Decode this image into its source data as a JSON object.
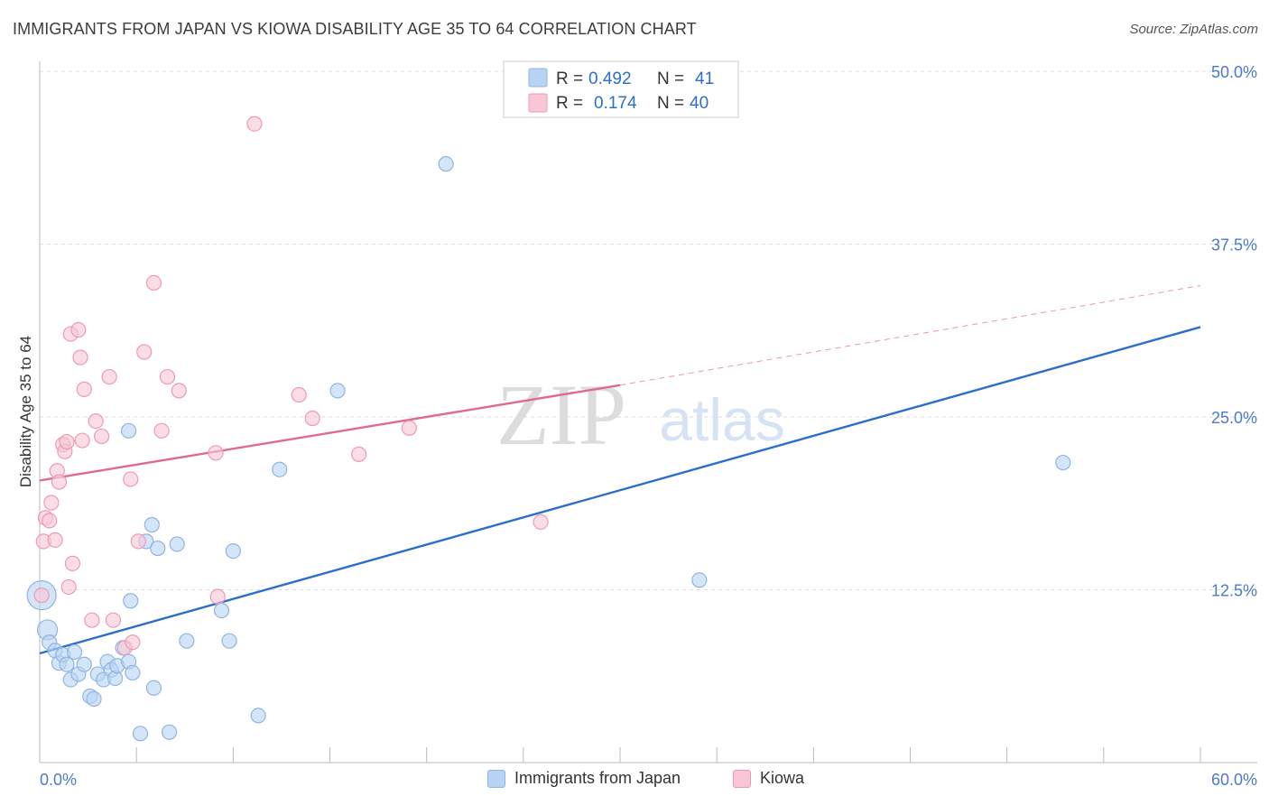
{
  "title": "IMMIGRANTS FROM JAPAN VS KIOWA DISABILITY AGE 35 TO 64 CORRELATION CHART",
  "source": "Source: ZipAtlas.com",
  "watermark": {
    "zip": "ZIP",
    "atlas": "atlas"
  },
  "legend": {
    "r_label": "R =",
    "n_label": "N =",
    "rows": [
      {
        "r": "0.492",
        "n": "41"
      },
      {
        "r": "0.174",
        "n": "40"
      }
    ]
  },
  "bottom_legend": [
    "Immigrants from Japan",
    "Kiowa"
  ],
  "colors": {
    "blue_fill": "#b9d3f3",
    "blue_stroke": "#8fb4e5",
    "blue_line": "#2b6fcc",
    "pink_fill": "#f8c6d5",
    "pink_stroke": "#ee9ab4",
    "pink_line": "#e0698f",
    "grid": "#dddddd",
    "tick_text": "#4a7cc9"
  },
  "chart_data": {
    "type": "scatter",
    "title": "IMMIGRANTS FROM JAPAN VS KIOWA DISABILITY AGE 35 TO 64 CORRELATION CHART",
    "xlabel": "",
    "ylabel": "Disability Age 35 to 64",
    "xlim": [
      0,
      60
    ],
    "ylim": [
      0,
      50
    ],
    "x_tick_labels": [
      "0.0%",
      "60.0%"
    ],
    "y_ticks": [
      12.5,
      25.0,
      37.5,
      50.0
    ],
    "y_tick_labels": [
      "12.5%",
      "25.0%",
      "37.5%",
      "50.0%"
    ],
    "grid": true,
    "series": [
      {
        "name": "Immigrants from Japan",
        "r": 0.492,
        "n": 41,
        "trend": {
          "x": [
            0,
            60
          ],
          "y": [
            7.9,
            31.5
          ]
        },
        "points": [
          [
            0.1,
            12.1,
            3
          ],
          [
            0.4,
            9.6,
            2
          ],
          [
            0.5,
            8.7,
            1
          ],
          [
            0.8,
            8.1,
            1
          ],
          [
            1.0,
            7.2,
            1
          ],
          [
            1.2,
            7.8,
            1
          ],
          [
            1.4,
            7.1,
            1
          ],
          [
            1.6,
            6.0,
            1
          ],
          [
            1.8,
            8.0,
            1
          ],
          [
            2.0,
            6.4,
            1
          ],
          [
            2.3,
            7.1,
            1
          ],
          [
            2.6,
            4.8,
            1
          ],
          [
            2.8,
            4.6,
            1
          ],
          [
            3.0,
            6.4,
            1
          ],
          [
            3.3,
            6.0,
            1
          ],
          [
            3.5,
            7.3,
            1
          ],
          [
            3.7,
            6.7,
            1
          ],
          [
            3.9,
            6.1,
            1
          ],
          [
            4.0,
            7.0,
            1
          ],
          [
            4.3,
            8.3,
            1
          ],
          [
            4.6,
            7.3,
            1
          ],
          [
            4.8,
            6.5,
            1
          ],
          [
            5.2,
            2.1,
            1
          ],
          [
            5.5,
            16.0,
            1
          ],
          [
            5.8,
            17.2,
            1
          ],
          [
            5.9,
            5.4,
            1
          ],
          [
            6.1,
            15.5,
            1
          ],
          [
            6.7,
            2.2,
            1
          ],
          [
            7.1,
            15.8,
            1
          ],
          [
            7.6,
            8.8,
            1
          ],
          [
            9.4,
            11.0,
            1
          ],
          [
            9.8,
            8.8,
            1
          ],
          [
            10.0,
            15.3,
            1
          ],
          [
            11.3,
            3.4,
            1
          ],
          [
            12.4,
            21.2,
            1
          ],
          [
            15.4,
            26.9,
            1
          ],
          [
            21.0,
            43.3,
            1
          ],
          [
            34.1,
            13.2,
            1
          ],
          [
            52.9,
            21.7,
            1
          ],
          [
            4.6,
            24.0,
            1
          ],
          [
            4.7,
            11.7,
            1
          ]
        ]
      },
      {
        "name": "Kiowa",
        "r": 0.174,
        "n": 40,
        "trend": {
          "x": [
            0,
            30
          ],
          "y": [
            20.4,
            27.3
          ]
        },
        "trend_dashed": {
          "x": [
            30,
            60
          ],
          "y": [
            27.3,
            34.5
          ]
        },
        "points": [
          [
            0.1,
            12.1,
            1
          ],
          [
            0.2,
            16.0,
            1
          ],
          [
            0.3,
            17.7,
            1
          ],
          [
            0.5,
            17.5,
            1
          ],
          [
            0.6,
            18.8,
            1
          ],
          [
            0.8,
            16.1,
            1
          ],
          [
            0.9,
            21.1,
            1
          ],
          [
            1.0,
            20.3,
            1
          ],
          [
            1.2,
            23.0,
            1
          ],
          [
            1.3,
            22.5,
            1
          ],
          [
            1.4,
            23.2,
            1
          ],
          [
            1.5,
            12.7,
            1
          ],
          [
            1.6,
            31.0,
            1
          ],
          [
            1.7,
            14.4,
            1
          ],
          [
            2.0,
            31.3,
            1
          ],
          [
            2.1,
            29.3,
            1
          ],
          [
            2.2,
            23.3,
            1
          ],
          [
            2.3,
            27.0,
            1
          ],
          [
            2.7,
            10.3,
            1
          ],
          [
            2.9,
            24.7,
            1
          ],
          [
            3.2,
            23.6,
            1
          ],
          [
            3.6,
            27.9,
            1
          ],
          [
            3.8,
            10.3,
            1
          ],
          [
            4.4,
            8.3,
            1
          ],
          [
            4.7,
            20.5,
            1
          ],
          [
            4.8,
            8.7,
            1
          ],
          [
            5.1,
            16.0,
            1
          ],
          [
            5.4,
            29.7,
            1
          ],
          [
            5.9,
            34.7,
            1
          ],
          [
            6.3,
            24.0,
            1
          ],
          [
            6.6,
            27.9,
            1
          ],
          [
            7.2,
            26.9,
            1
          ],
          [
            9.1,
            22.4,
            1
          ],
          [
            9.2,
            12.0,
            1
          ],
          [
            13.4,
            26.6,
            1
          ],
          [
            14.1,
            24.9,
            1
          ],
          [
            16.5,
            22.3,
            1
          ],
          [
            19.1,
            24.2,
            1
          ],
          [
            25.9,
            17.4,
            1
          ],
          [
            11.1,
            46.2,
            1
          ]
        ]
      }
    ]
  }
}
